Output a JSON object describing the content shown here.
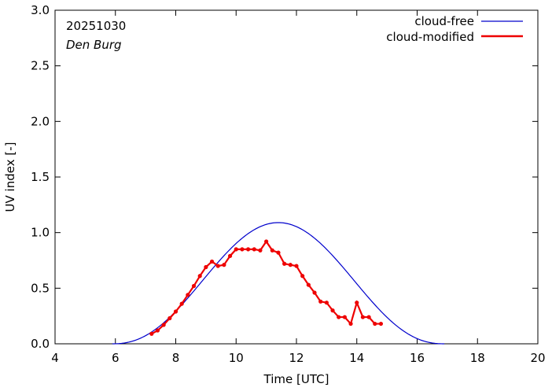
{
  "chart_data": {
    "type": "line",
    "xlabel": "Time  [UTC]",
    "ylabel": "UV index  [-]",
    "xlim": [
      4,
      20
    ],
    "ylim": [
      0,
      3
    ],
    "xticks": [
      4,
      6,
      8,
      10,
      12,
      14,
      16,
      18,
      20
    ],
    "yticks": [
      0.0,
      0.5,
      1.0,
      1.5,
      2.0,
      2.5,
      3.0
    ],
    "xtick_labels": [
      "4",
      "6",
      "8",
      "10",
      "12",
      "14",
      "16",
      "18",
      "20"
    ],
    "ytick_labels": [
      "0.0",
      "0.5",
      "1.0",
      "1.5",
      "2.0",
      "2.5",
      "3.0"
    ],
    "grid": false,
    "legend_position": "top-right",
    "annotations": {
      "date": "20251030",
      "location": "Den Burg"
    },
    "series": [
      {
        "name": "cloud-free",
        "color": "#0000cc",
        "style": "curve",
        "peak_time": 11.4,
        "peak_value": 1.09,
        "start_time": 5.9,
        "end_time": 16.9
      },
      {
        "name": "cloud-modified",
        "color": "#ee0000",
        "style": "line-points",
        "x": [
          7.2,
          7.4,
          7.6,
          7.8,
          8.0,
          8.2,
          8.4,
          8.6,
          8.8,
          9.0,
          9.2,
          9.4,
          9.6,
          9.8,
          10.0,
          10.2,
          10.4,
          10.6,
          10.8,
          11.0,
          11.2,
          11.4,
          11.6,
          11.8,
          12.0,
          12.2,
          12.4,
          12.6,
          12.8,
          13.0,
          13.2,
          13.4,
          13.6,
          13.8,
          14.0,
          14.2,
          14.4,
          14.6,
          14.8
        ],
        "y": [
          0.09,
          0.12,
          0.17,
          0.23,
          0.29,
          0.36,
          0.44,
          0.52,
          0.61,
          0.69,
          0.74,
          0.7,
          0.71,
          0.79,
          0.85,
          0.85,
          0.85,
          0.85,
          0.84,
          0.92,
          0.84,
          0.82,
          0.72,
          0.71,
          0.7,
          0.61,
          0.53,
          0.46,
          0.38,
          0.37,
          0.3,
          0.24,
          0.24,
          0.18,
          0.37,
          0.24,
          0.24,
          0.18,
          0.18
        ]
      }
    ]
  }
}
